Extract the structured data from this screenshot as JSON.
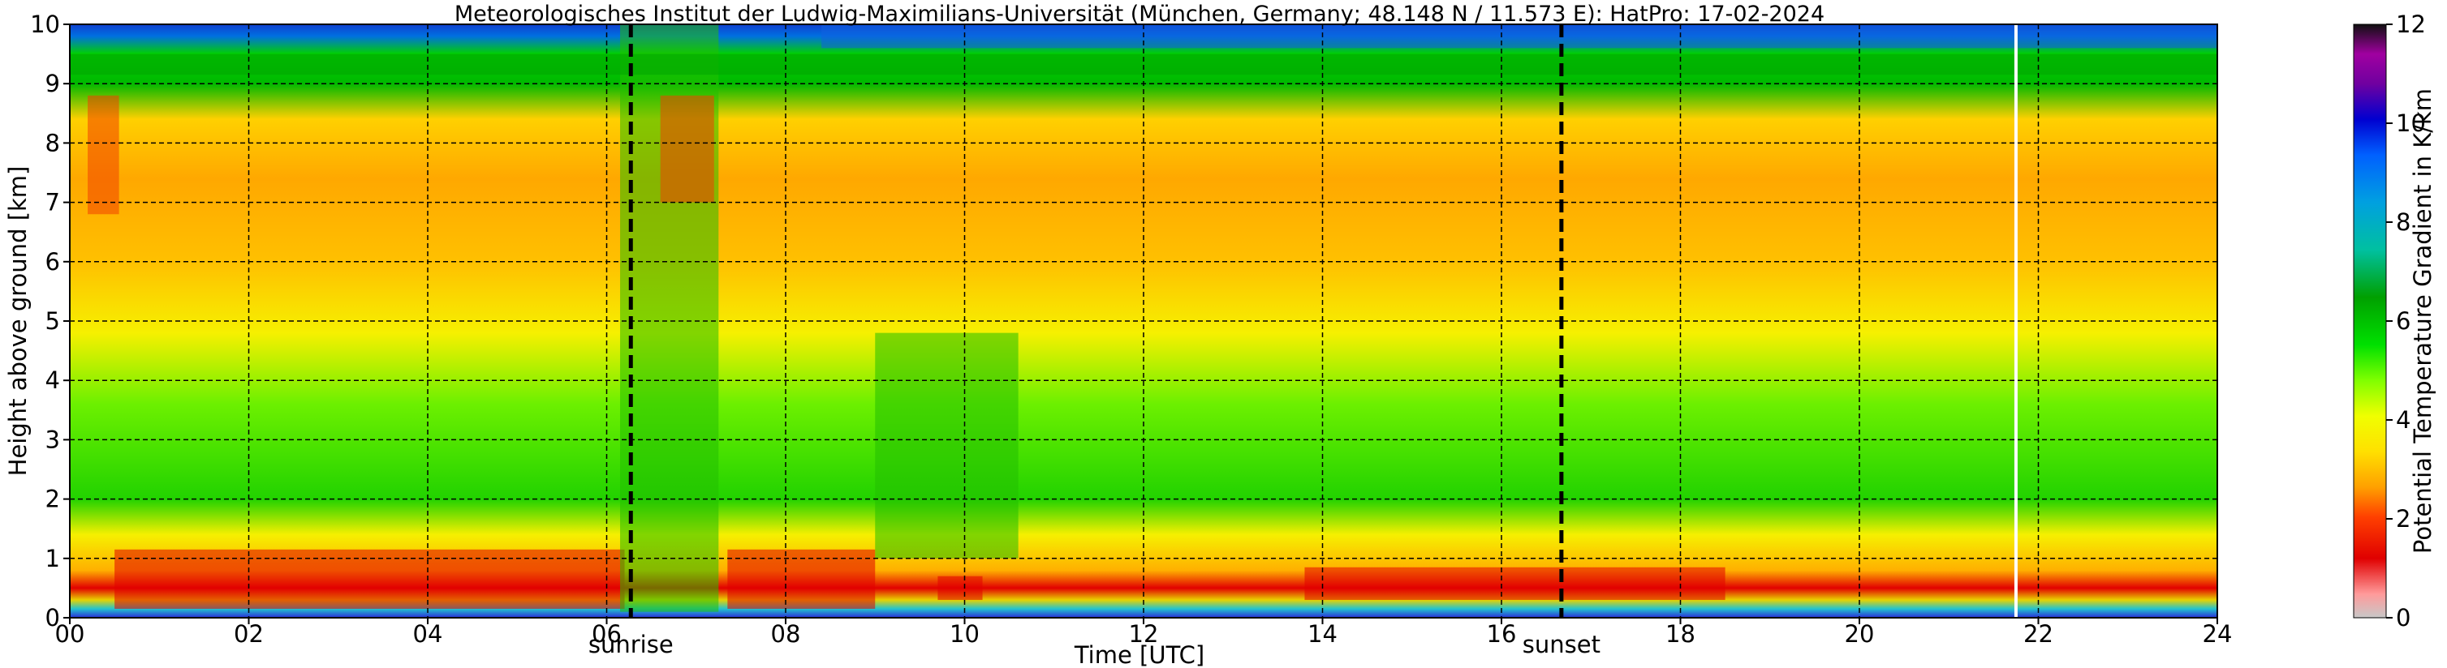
{
  "chart_data": {
    "type": "heatmap",
    "title": "Meteorologisches Institut der Ludwig-Maximilians-Universität (München, Germany; 48.148 N / 11.573 E):    HatPro: 17-02-2024",
    "xlabel": "Time [UTC]",
    "ylabel": "Height above ground [km]",
    "xlim": [
      0,
      24
    ],
    "ylim": [
      0,
      10
    ],
    "x_ticks": [
      "00",
      "02",
      "04",
      "06",
      "08",
      "10",
      "12",
      "14",
      "16",
      "18",
      "20",
      "22",
      "24"
    ],
    "y_ticks": [
      "0",
      "1",
      "2",
      "3",
      "4",
      "5",
      "6",
      "7",
      "8",
      "9",
      "10"
    ],
    "grid": true,
    "colorbar": {
      "label": "Potential Temperature Gradient in K/km",
      "range": [
        0,
        12
      ],
      "ticks": [
        "0",
        "2",
        "4",
        "6",
        "8",
        "10",
        "12"
      ]
    },
    "markers": [
      {
        "label": "sunrise",
        "x": 6.27
      },
      {
        "label": "sunset",
        "x": 16.67
      }
    ],
    "data_gap_x": 21.75,
    "description_note": ""
  },
  "colors": {
    "background": "#ffffff",
    "grid": "#000000",
    "marker_line": "#000000",
    "gap": "#ffffff"
  }
}
